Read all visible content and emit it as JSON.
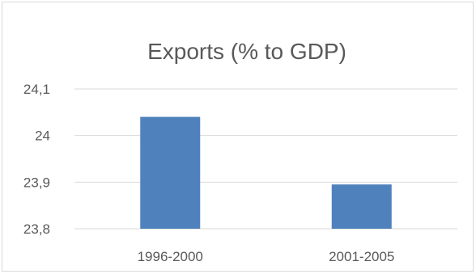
{
  "chart_data": {
    "type": "bar",
    "title": "Exports (% to GDP)",
    "xlabel": "",
    "ylabel": "",
    "categories": [
      "1996-2000",
      "2001-2005"
    ],
    "values": [
      24.04,
      23.895
    ],
    "ylim": [
      23.8,
      24.1
    ],
    "y_ticks": [
      23.8,
      23.9,
      24.0,
      24.1
    ],
    "y_tick_labels": [
      "23,8",
      "23,9",
      "24",
      "24,1"
    ],
    "grid": true,
    "legend": "none",
    "colors": {
      "bar": "#4f81bd",
      "grid": "#d9d9d9",
      "text": "#595959"
    }
  }
}
